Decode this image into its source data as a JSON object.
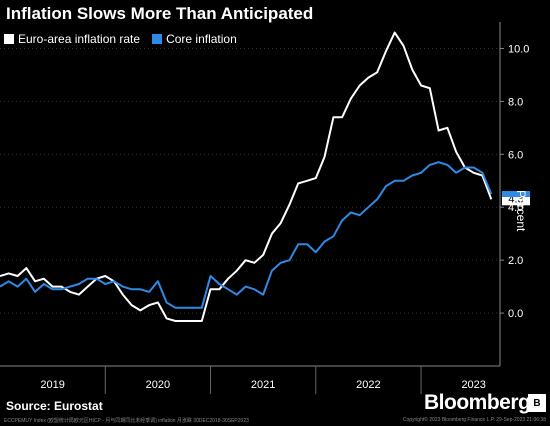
{
  "title": "Inflation Slows More Than Anticipated",
  "source": "Source: Eurostat",
  "brand": "Bloomberg",
  "brand_badge": "B",
  "footer_left": "ECCPEMUY Index (欧盟统计局欧元区HICP - 月与同期同比未经季调) inflation 月涨跌 30DEC2018-30SEP2023",
  "footer_right": "Copyright© 2023 Bloomberg Finance L.P.  29-Sep-2023 21:06:38",
  "colors": {
    "background": "#000000",
    "headline": "#ffffff",
    "core": "#2f8ae6",
    "grid": "#444444"
  },
  "chart_data": {
    "type": "line",
    "title": "Inflation Slows More Than Anticipated",
    "ylabel": "Percent",
    "yaxis_side": "right",
    "ylim": [
      -2,
      11
    ],
    "yticks": [
      0.0,
      2.0,
      4.0,
      6.0,
      8.0,
      10.0
    ],
    "ytick_labels": [
      "0.0",
      "2.0",
      "4.0",
      "6.0",
      "8.0",
      "10.0"
    ],
    "xlim": [
      2019.0,
      2023.75
    ],
    "xtick_labels": [
      "2019",
      "2020",
      "2021",
      "2022",
      "2023"
    ],
    "grid": false,
    "legend_position": "top-left",
    "last_value_label": "4.3",
    "series": [
      {
        "name": "Euro-area inflation rate",
        "color": "#ffffff",
        "x": [
          2019.0,
          2019.083,
          2019.167,
          2019.25,
          2019.333,
          2019.417,
          2019.5,
          2019.583,
          2019.667,
          2019.75,
          2019.833,
          2019.917,
          2020.0,
          2020.083,
          2020.167,
          2020.25,
          2020.333,
          2020.417,
          2020.5,
          2020.583,
          2020.667,
          2020.75,
          2020.833,
          2020.917,
          2021.0,
          2021.083,
          2021.167,
          2021.25,
          2021.333,
          2021.417,
          2021.5,
          2021.583,
          2021.667,
          2021.75,
          2021.833,
          2021.917,
          2022.0,
          2022.083,
          2022.167,
          2022.25,
          2022.333,
          2022.417,
          2022.5,
          2022.583,
          2022.667,
          2022.75,
          2022.833,
          2022.917,
          2023.0,
          2023.083,
          2023.167,
          2023.25,
          2023.333,
          2023.417,
          2023.5,
          2023.583,
          2023.667
        ],
        "values": [
          1.4,
          1.5,
          1.4,
          1.7,
          1.2,
          1.3,
          1.0,
          1.0,
          0.8,
          0.7,
          1.0,
          1.3,
          1.4,
          1.2,
          0.7,
          0.3,
          0.1,
          0.3,
          0.4,
          -0.2,
          -0.3,
          -0.3,
          -0.3,
          -0.3,
          0.9,
          0.9,
          1.3,
          1.6,
          2.0,
          1.9,
          2.2,
          3.0,
          3.4,
          4.1,
          4.9,
          5.0,
          5.1,
          5.9,
          7.4,
          7.4,
          8.1,
          8.6,
          8.9,
          9.1,
          9.9,
          10.6,
          10.1,
          9.2,
          8.6,
          8.5,
          6.9,
          7.0,
          6.1,
          5.5,
          5.3,
          5.2,
          4.3
        ]
      },
      {
        "name": "Core inflation",
        "color": "#2f8ae6",
        "x": [
          2019.0,
          2019.083,
          2019.167,
          2019.25,
          2019.333,
          2019.417,
          2019.5,
          2019.583,
          2019.667,
          2019.75,
          2019.833,
          2019.917,
          2020.0,
          2020.083,
          2020.167,
          2020.25,
          2020.333,
          2020.417,
          2020.5,
          2020.583,
          2020.667,
          2020.75,
          2020.833,
          2020.917,
          2021.0,
          2021.083,
          2021.167,
          2021.25,
          2021.333,
          2021.417,
          2021.5,
          2021.583,
          2021.667,
          2021.75,
          2021.833,
          2021.917,
          2022.0,
          2022.083,
          2022.167,
          2022.25,
          2022.333,
          2022.417,
          2022.5,
          2022.583,
          2022.667,
          2022.75,
          2022.833,
          2022.917,
          2023.0,
          2023.083,
          2023.167,
          2023.25,
          2023.333,
          2023.417,
          2023.5,
          2023.583,
          2023.667
        ],
        "values": [
          1.0,
          1.2,
          1.0,
          1.3,
          0.8,
          1.1,
          0.9,
          0.9,
          1.0,
          1.1,
          1.3,
          1.3,
          1.1,
          1.2,
          1.0,
          0.9,
          0.9,
          0.8,
          1.2,
          0.4,
          0.2,
          0.2,
          0.2,
          0.2,
          1.4,
          1.1,
          0.9,
          0.7,
          1.0,
          0.9,
          0.7,
          1.6,
          1.9,
          2.0,
          2.6,
          2.6,
          2.3,
          2.7,
          2.9,
          3.5,
          3.8,
          3.7,
          4.0,
          4.3,
          4.8,
          5.0,
          5.0,
          5.2,
          5.3,
          5.6,
          5.7,
          5.6,
          5.3,
          5.5,
          5.5,
          5.3,
          4.5
        ]
      }
    ]
  }
}
